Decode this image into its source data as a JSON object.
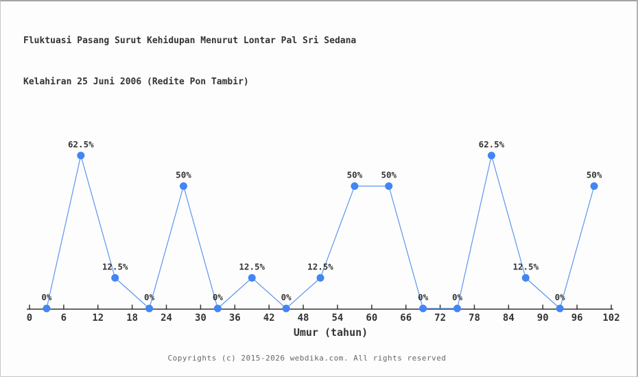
{
  "title": {
    "line1": "Fluktuasi Pasang Surut Kehidupan Menurut Lontar Pal Sri Sedana",
    "line2": "Kelahiran 25 Juni 2006 (Redite Pon Tambir)"
  },
  "chart_data": {
    "type": "line",
    "title": "Fluktuasi Pasang Surut Kehidupan Menurut Lontar Pal Sri Sedana Kelahiran 25 Juni 2006 (Redite Pon Tambir)",
    "xlabel": "Umur (tahun)",
    "ylabel": "",
    "x": [
      3,
      9,
      15,
      21,
      27,
      33,
      39,
      45,
      51,
      57,
      63,
      69,
      75,
      81,
      87,
      93,
      99
    ],
    "values": [
      0,
      62.5,
      12.5,
      0,
      50,
      0,
      12.5,
      0,
      12.5,
      50,
      50,
      0,
      0,
      62.5,
      12.5,
      0,
      50
    ],
    "point_labels": [
      "0%",
      "62.5%",
      "12.5%",
      "0%",
      "50%",
      "0%",
      "12.5%",
      "0%",
      "12.5%",
      "50%",
      "50%",
      "0%",
      "0%",
      "62.5%",
      "12.5%",
      "0%",
      "50%"
    ],
    "x_ticks": [
      0,
      6,
      12,
      18,
      24,
      30,
      36,
      42,
      48,
      54,
      60,
      66,
      72,
      78,
      84,
      90,
      96,
      102
    ],
    "xlim": [
      0,
      102
    ],
    "ylim": [
      0,
      70
    ],
    "grid": false,
    "legend": null
  },
  "footer": {
    "copyright": "Copyrights (c) 2015-2026 webdika.com. All rights reserved"
  },
  "colors": {
    "marker": "#4285f4",
    "line": "#5b94ef",
    "axis": "#333333",
    "text": "#333333",
    "muted": "#666666",
    "background": "#fdfdfd"
  }
}
